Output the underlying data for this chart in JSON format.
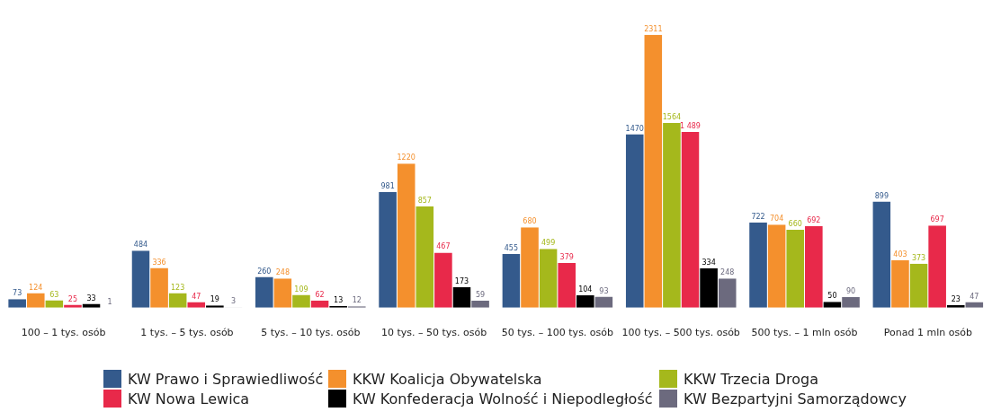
{
  "chart_data": {
    "type": "bar",
    "categories": [
      "100 – 1 tys. osób",
      "1 tys. – 5 tys. osób",
      "5 tys. – 10 tys. osób",
      "10 tys. – 50 tys. osób",
      "50 tys. – 100 tys. osób",
      "100 tys. – 500 tys. osób",
      "500 tys. – 1 mln osób",
      "Ponad 1 mln osób"
    ],
    "tick_labels": "x",
    "legend": "bottom",
    "grid": false,
    "series": [
      {
        "name": "KW Prawo i Sprawiedliwość",
        "color": "#345a8c",
        "values": [
          73,
          484,
          260,
          981,
          455,
          1470,
          722,
          899
        ],
        "value_labels": [
          "73",
          "484",
          "260",
          "981",
          "455",
          "1470",
          "722",
          "899"
        ]
      },
      {
        "name": "KKW Koalicja Obywatelska",
        "color": "#f4902d",
        "values": [
          124,
          336,
          248,
          1220,
          680,
          2311,
          704,
          403
        ],
        "value_labels": [
          "124",
          "336",
          "248",
          "1220",
          "680",
          "2311",
          "704",
          "403"
        ]
      },
      {
        "name": "KKW Trzecia Droga",
        "color": "#a5b81c",
        "values": [
          63,
          123,
          109,
          857,
          499,
          1564,
          660,
          373
        ],
        "value_labels": [
          "63",
          "123",
          "109",
          "857",
          "499",
          "1564",
          "660",
          "373"
        ]
      },
      {
        "name": "KW Nowa Lewica",
        "color": "#e8294a",
        "values": [
          25,
          47,
          62,
          467,
          379,
          1489,
          692,
          697
        ],
        "value_labels": [
          "25",
          "47",
          "62",
          "467",
          "379",
          "1 489",
          "692",
          "697"
        ]
      },
      {
        "name": "KW Konfederacja Wolność i Niepodległość",
        "color": "#000000",
        "values": [
          33,
          19,
          13,
          173,
          104,
          334,
          50,
          23
        ],
        "value_labels": [
          "33",
          "19",
          "13",
          "173",
          "104",
          "334",
          "50",
          "23"
        ]
      },
      {
        "name": "KW Bezpartyjni Samorządowcy",
        "color": "#6c6a7e",
        "values": [
          1,
          3,
          12,
          59,
          93,
          248,
          90,
          47
        ],
        "value_labels": [
          "1",
          "3",
          "12",
          "59",
          "93",
          "248",
          "90",
          "47"
        ]
      }
    ]
  }
}
